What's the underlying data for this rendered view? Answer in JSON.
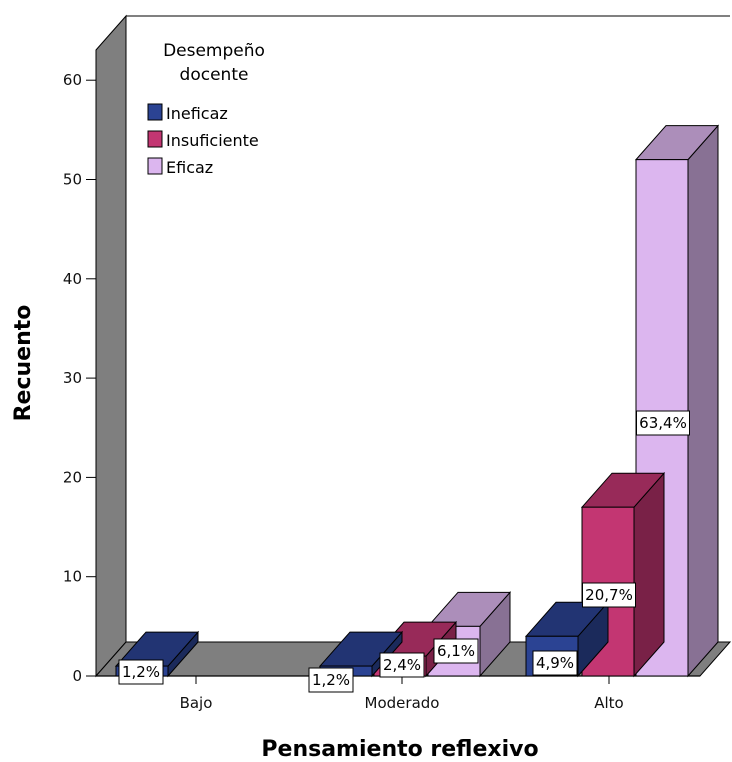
{
  "chart_data": {
    "type": "bar",
    "style": "3d-clustered",
    "xlabel": "Pensamiento reflexivo",
    "ylabel": "Recuento",
    "categories": [
      "Bajo",
      "Moderado",
      "Alto"
    ],
    "ylim": [
      0,
      65
    ],
    "yticks": [
      0,
      10,
      20,
      30,
      40,
      50,
      60
    ],
    "grid": false,
    "legend": {
      "title": "Desempeño docente",
      "title_lines": [
        "Desempeño",
        "docente"
      ],
      "placement": "top-left"
    },
    "series": [
      {
        "name": "Ineficaz",
        "color": "#2b4393",
        "values": [
          1,
          1,
          4
        ],
        "labels": [
          "1,2%",
          "1,2%",
          "4,9%"
        ]
      },
      {
        "name": "Insuficiente",
        "color": "#c33672",
        "values": [
          0,
          2,
          17
        ],
        "labels": [
          "",
          "2,4%",
          "20,7%"
        ]
      },
      {
        "name": "Eficaz",
        "color": "#dcb6ef",
        "values": [
          0,
          5,
          52
        ],
        "labels": [
          "",
          "6,1%",
          "63,4%"
        ]
      }
    ]
  }
}
